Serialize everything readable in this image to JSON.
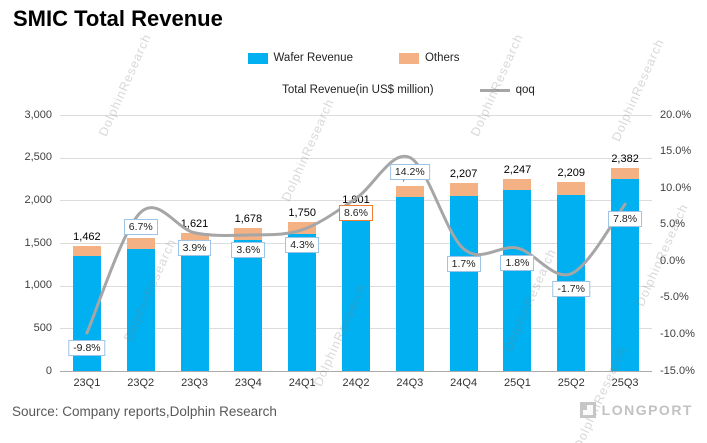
{
  "title": "SMIC Total Revenue",
  "legend": {
    "wafer": "Wafer Revenue",
    "others": "Others",
    "total": "Total Revenue(in US$ million)",
    "qoq": "qoq"
  },
  "footer": {
    "source": "Source: Company reports,Dolphin Research",
    "brand": "LONGPORT"
  },
  "watermark": "DolphinResearch",
  "colors": {
    "wafer_bar": "#00B0F0",
    "others_bar": "#F4B183",
    "qoq_line": "#A6A6A6",
    "qoq_box_border": "#9DC3E6",
    "qoq_box_highlight_border": "#ED7D31",
    "gridline": "#dcdcdc"
  },
  "chart_data": {
    "type": "bar",
    "subtype": "stacked-bars-with-line",
    "title": "SMIC Total Revenue",
    "categories": [
      "23Q1",
      "23Q2",
      "23Q3",
      "23Q4",
      "24Q1",
      "24Q2",
      "24Q3",
      "24Q4",
      "25Q1",
      "25Q2",
      "25Q3"
    ],
    "series": [
      {
        "name": "Wafer Revenue",
        "type": "bar",
        "stacked": true,
        "color": "#00B0F0",
        "values": [
          1350,
          1430,
          1485,
          1540,
          1608,
          1760,
          2040,
          2045,
          2120,
          2065,
          2255
        ]
      },
      {
        "name": "Others",
        "type": "bar",
        "stacked": true,
        "color": "#F4B183",
        "values": [
          112,
          130,
          136,
          138,
          142,
          141,
          131,
          162,
          127,
          144,
          127
        ]
      },
      {
        "name": "qoq",
        "type": "line",
        "axis": "right",
        "color": "#A6A6A6",
        "smooth": true,
        "values": [
          -9.8,
          6.7,
          3.9,
          3.6,
          4.3,
          8.6,
          14.2,
          1.7,
          1.8,
          -1.7,
          7.8
        ]
      }
    ],
    "totals": [
      1462,
      1560,
      1621,
      1678,
      1750,
      1901,
      2171,
      2207,
      2247,
      2209,
      2382
    ],
    "total_labels": [
      "1,462",
      "1,560",
      "1,621",
      "1,678",
      "1,750",
      "1,901",
      "2,171",
      "2,207",
      "2,247",
      "2,209",
      "2,382"
    ],
    "qoq_labels": [
      "-9.8%",
      "6.7%",
      "3.9%",
      "3.6%",
      "4.3%",
      "8.6%",
      "14.2%",
      "1.7%",
      "1.8%",
      "-1.7%",
      "7.8%"
    ],
    "qoq_highlight_index": 5,
    "left_axis": {
      "min": 0,
      "max": 3000,
      "step": 500,
      "tick_labels": [
        "3,000",
        "2,500",
        "2,000",
        "1,500",
        "1,000",
        "500",
        "0"
      ]
    },
    "right_axis": {
      "min": -15,
      "max": 20,
      "step": 5,
      "tick_labels": [
        "20.0%",
        "15.0%",
        "10.0%",
        "5.0%",
        "0.0%",
        "-5.0%",
        "-10.0%",
        "-15.0%"
      ]
    },
    "grid": true,
    "legend_position": "top"
  }
}
